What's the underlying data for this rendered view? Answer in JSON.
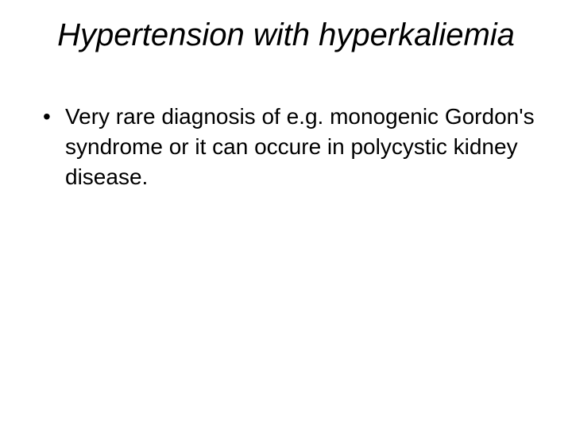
{
  "slide": {
    "title": "Hypertension with hyperkaliemia",
    "bullets": [
      {
        "marker": "•",
        "text": "Very rare diagnosis of e.g. monogenic Gordon's syndrome or it can occure in polycystic kidney disease."
      }
    ]
  },
  "style": {
    "background_color": "#ffffff",
    "text_color": "#000000",
    "title_fontsize": 40,
    "title_font_style": "italic",
    "body_fontsize": 28,
    "body_line_height": 38,
    "font_family": "Arial"
  }
}
